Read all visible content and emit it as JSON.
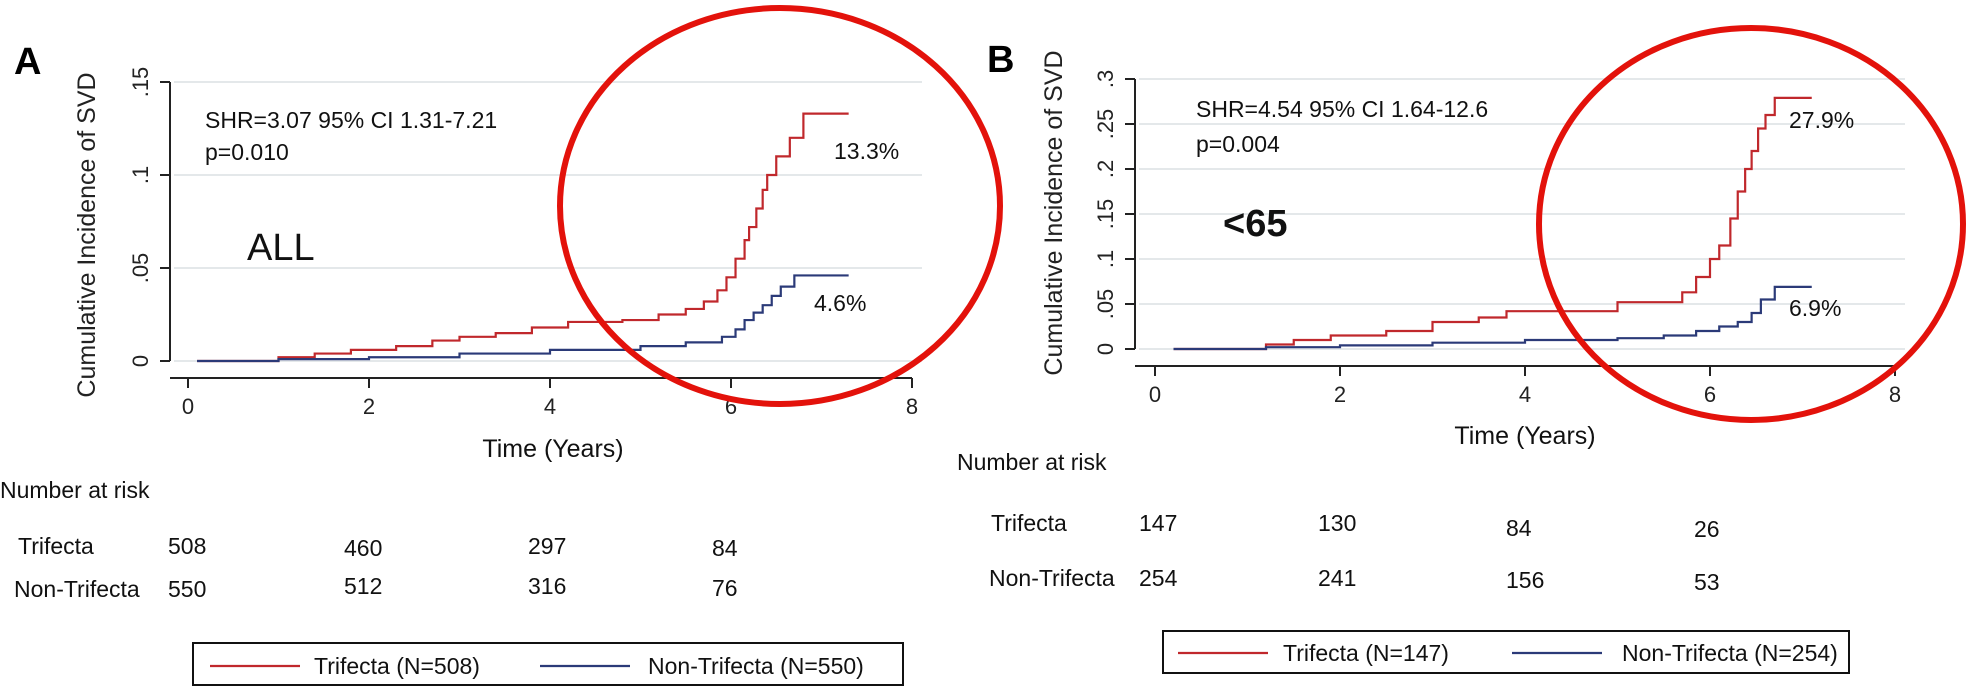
{
  "panels": [
    {
      "id": "A",
      "letter": "A",
      "shr_line": "SHR=3.07  95% CI 1.31-7.21",
      "p_line": "p=0.010",
      "group_label": "ALL",
      "ylabel": "Cumulative Incidence of SVD",
      "xlabel": "Time (Years)",
      "risk_title": "Number at risk",
      "risk_rows": [
        {
          "label": "Trifecta",
          "values": [
            "508",
            "460",
            "297",
            "84"
          ]
        },
        {
          "label": "Non-Trifecta",
          "values": [
            "550",
            "512",
            "316",
            "76"
          ]
        }
      ],
      "legend": [
        "Trifecta (N=508)",
        "Non-Trifecta (N=550)"
      ],
      "end_labels": [
        "13.3%",
        "4.6%"
      ]
    },
    {
      "id": "B",
      "letter": "B",
      "shr_line": "SHR=4.54  95% CI 1.64-12.6",
      "p_line": "p=0.004",
      "group_label": "<65",
      "ylabel": "Cumulative Incidence of SVD",
      "xlabel": "Time (Years)",
      "risk_title": "Number at risk",
      "risk_rows": [
        {
          "label": "Trifecta",
          "values": [
            "147",
            "130",
            "84",
            "26"
          ]
        },
        {
          "label": "Non-Trifecta",
          "values": [
            "254",
            "241",
            "156",
            "53"
          ]
        }
      ],
      "legend": [
        "Trifecta (N=147)",
        "Non-Trifecta (N=254)"
      ],
      "end_labels": [
        "27.9%",
        "6.9%"
      ]
    }
  ],
  "colors": {
    "trifecta": "#c0282c",
    "non_trifecta": "#2b3a78",
    "circle": "#e3120b",
    "grid": "#e4e8ea"
  },
  "chart_data": [
    {
      "type": "line",
      "xlabel": "Time (Years)",
      "ylabel": "Cumulative Incidence of SVD",
      "xlim": [
        0,
        8
      ],
      "ylim": [
        0,
        0.15
      ],
      "xticks": [
        0,
        2,
        4,
        6,
        8
      ],
      "yticks": [
        0,
        0.05,
        0.1,
        0.15
      ],
      "ytick_labels": [
        "0",
        ".05",
        ".1",
        ".15"
      ],
      "grid": true,
      "legend_position": "bottom",
      "series": [
        {
          "name": "Trifecta (N=508)",
          "x": [
            0.1,
            0.9,
            1.0,
            1.4,
            1.8,
            2.3,
            2.7,
            3.0,
            3.4,
            3.8,
            4.2,
            4.8,
            5.2,
            5.5,
            5.7,
            5.85,
            5.95,
            6.05,
            6.15,
            6.2,
            6.28,
            6.35,
            6.4,
            6.5,
            6.65,
            6.8,
            7.3
          ],
          "y": [
            0,
            0,
            0.002,
            0.004,
            0.006,
            0.008,
            0.011,
            0.013,
            0.015,
            0.018,
            0.021,
            0.022,
            0.025,
            0.028,
            0.032,
            0.038,
            0.045,
            0.055,
            0.065,
            0.072,
            0.082,
            0.092,
            0.1,
            0.11,
            0.12,
            0.133,
            0.133
          ]
        },
        {
          "name": "Non-Trifecta (N=550)",
          "x": [
            0.1,
            0.9,
            1.0,
            2.0,
            3.0,
            4.0,
            5.0,
            5.5,
            5.9,
            6.05,
            6.15,
            6.25,
            6.35,
            6.45,
            6.55,
            6.7,
            7.3
          ],
          "y": [
            0,
            0,
            0.001,
            0.002,
            0.004,
            0.006,
            0.008,
            0.01,
            0.013,
            0.017,
            0.022,
            0.026,
            0.03,
            0.035,
            0.04,
            0.046,
            0.046
          ]
        }
      ],
      "annotations": [
        "SHR=3.07  95% CI 1.31-7.21",
        "p=0.010",
        "ALL",
        "13.3%",
        "4.6%"
      ]
    },
    {
      "type": "line",
      "xlabel": "Time (Years)",
      "ylabel": "Cumulative Incidence of SVD",
      "xlim": [
        0,
        8
      ],
      "ylim": [
        0,
        0.3
      ],
      "xticks": [
        0,
        2,
        4,
        6,
        8
      ],
      "yticks": [
        0,
        0.05,
        0.1,
        0.15,
        0.2,
        0.25,
        0.3
      ],
      "ytick_labels": [
        "0",
        ".05",
        ".1",
        ".15",
        ".2",
        ".25",
        ".3"
      ],
      "grid": true,
      "legend_position": "bottom",
      "series": [
        {
          "name": "Trifecta (N=147)",
          "x": [
            0.2,
            1.2,
            1.5,
            1.9,
            2.5,
            3.0,
            3.5,
            3.8,
            5.0,
            5.7,
            5.85,
            6.0,
            6.1,
            6.22,
            6.3,
            6.38,
            6.45,
            6.52,
            6.6,
            6.7,
            7.1
          ],
          "y": [
            0,
            0.005,
            0.01,
            0.015,
            0.02,
            0.03,
            0.035,
            0.042,
            0.052,
            0.063,
            0.08,
            0.1,
            0.115,
            0.145,
            0.175,
            0.2,
            0.22,
            0.245,
            0.26,
            0.279,
            0.279
          ]
        },
        {
          "name": "Non-Trifecta (N=254)",
          "x": [
            0.2,
            1.2,
            2.0,
            3.0,
            4.0,
            5.0,
            5.5,
            5.85,
            6.1,
            6.3,
            6.45,
            6.55,
            6.7,
            7.1
          ],
          "y": [
            0,
            0.002,
            0.004,
            0.007,
            0.01,
            0.012,
            0.015,
            0.02,
            0.025,
            0.03,
            0.04,
            0.055,
            0.069,
            0.069
          ]
        }
      ],
      "annotations": [
        "SHR=4.54  95% CI 1.64-12.6",
        "p=0.004",
        "<65",
        "27.9%",
        "6.9%"
      ]
    }
  ]
}
